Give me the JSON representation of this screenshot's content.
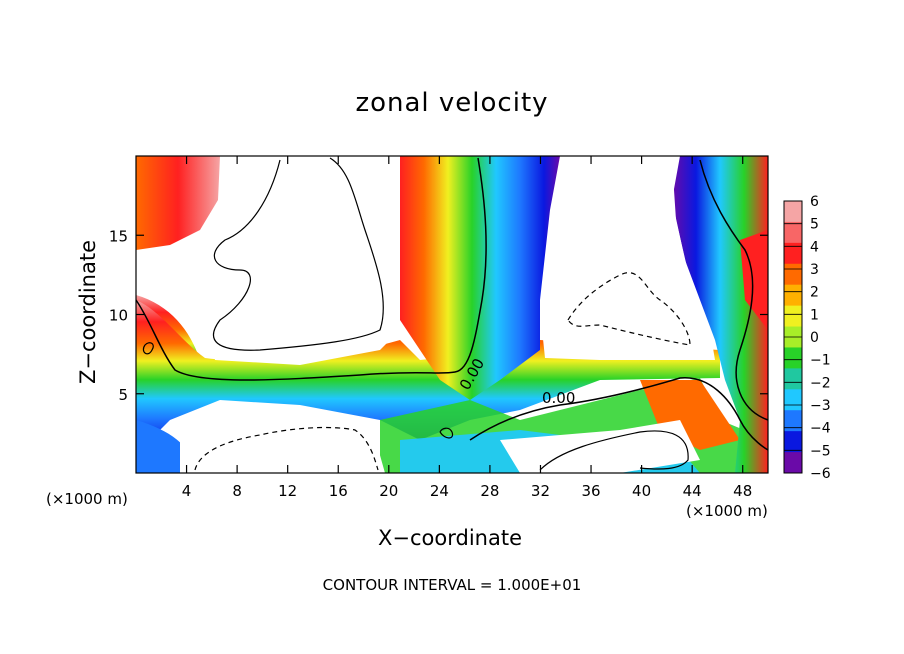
{
  "chart_data": {
    "type": "heatmap",
    "title": "zonal velocity",
    "xlabel": "X−coordinate",
    "ylabel": "Z−coordinate",
    "x_unit_label_left": "(×1000 m)",
    "x_unit_label_right": "(×1000 m)",
    "xlim": [
      0,
      50
    ],
    "ylim": [
      0,
      20
    ],
    "x_ticks": [
      "4",
      "8",
      "12",
      "16",
      "20",
      "24",
      "28",
      "32",
      "36",
      "40",
      "44",
      "48"
    ],
    "y_ticks": [
      "5",
      "10",
      "15"
    ],
    "colorbar_ticks": [
      "6",
      "5",
      "4",
      "3",
      "2",
      "1",
      "0",
      "−1",
      "−2",
      "−3",
      "−4",
      "−5",
      "−6"
    ],
    "colorbar_range": [
      -6,
      6
    ],
    "colorbar_colors": [
      "#f5a5a5",
      "#f86666",
      "#ff2020",
      "#ff6a00",
      "#ffb000",
      "#f0f020",
      "#a8ee28",
      "#28d228",
      "#20c8a0",
      "#20c8ff",
      "#1e78ff",
      "#0a18e0",
      "#6a0aa8"
    ],
    "contour_labels": [
      "0.00",
      "0.00"
    ],
    "annotation": "CONTOUR INTERVAL = 1.000E+01"
  }
}
